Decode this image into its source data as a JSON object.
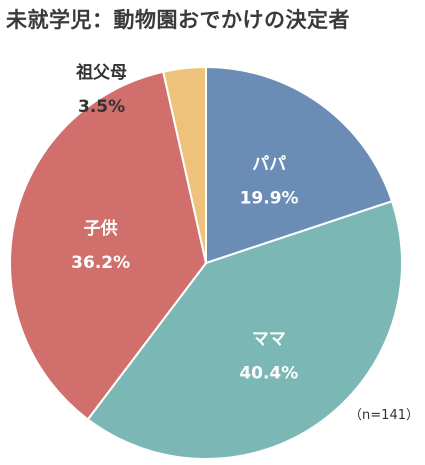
{
  "title": "未就学児：動物園おでかけの決定者",
  "note": "（n=141）",
  "chart_data": {
    "type": "pie",
    "title": "未就学児：動物園おでかけの決定者",
    "start_angle_deg": 0,
    "direction": "clockwise",
    "slices": [
      {
        "label": "パパ",
        "value": 19.9,
        "display": "19.9%",
        "color": "#6b8db5",
        "text_color": "#ffffff",
        "label_outside": false
      },
      {
        "label": "ママ",
        "value": 40.4,
        "display": "40.4%",
        "color": "#7bb8b5",
        "text_color": "#ffffff",
        "label_outside": false
      },
      {
        "label": "子供",
        "value": 36.2,
        "display": "36.2%",
        "color": "#d06f6b",
        "text_color": "#ffffff",
        "label_outside": false
      },
      {
        "label": "祖父母",
        "value": 3.5,
        "display": "3.5%",
        "color": "#efc27b",
        "text_color": "#333333",
        "label_outside": true
      }
    ]
  }
}
